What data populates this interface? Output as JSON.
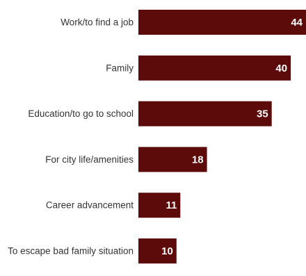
{
  "chart_data": {
    "type": "bar",
    "orientation": "horizontal",
    "categories": [
      "Work/to find a job",
      "Family",
      "Education/to go to school",
      "For city life/amenities",
      "Career advancement",
      "To escape bad family situation"
    ],
    "values": [
      44,
      40,
      35,
      18,
      11,
      10
    ],
    "data_labels": [
      "44",
      "40",
      "35",
      "18",
      "11",
      "10"
    ],
    "title": "",
    "xlabel": "",
    "ylabel": "",
    "xlim": [
      0,
      44
    ],
    "grid": false,
    "legend": "none",
    "colors": {
      "bar": "#5c0a0a",
      "value_text": "#ffffff",
      "category_text": "#333333"
    }
  }
}
